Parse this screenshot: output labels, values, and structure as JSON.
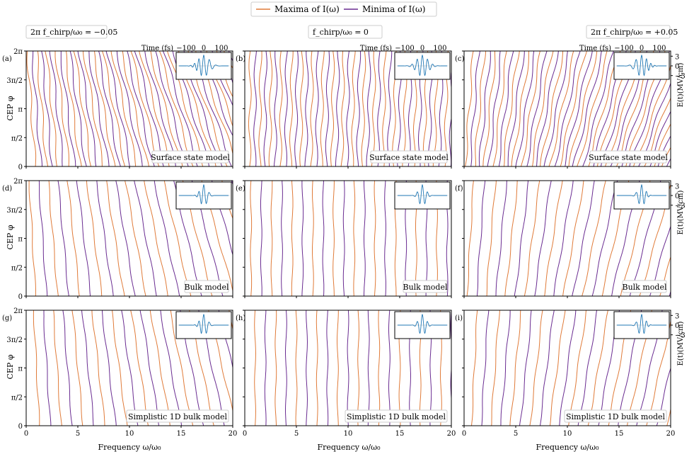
{
  "legend": {
    "maxima_label": "Maxima of I(ω)",
    "minima_label": "Minima of I(ω)",
    "maxima_color": "#e07b39",
    "minima_color": "#6a2c91"
  },
  "colors": {
    "inset_field": "#1f77b4"
  },
  "column_titles": [
    "2π f_chirp/ω₀ = −0.05",
    "f_chirp/ω₀ = 0",
    "2π f_chirp/ω₀ = +0.05"
  ],
  "row_models": [
    "Surface state model",
    "Bulk model",
    "Simplistic 1D bulk model"
  ],
  "panel_letters": [
    "(a)",
    "(b)",
    "(c)",
    "(d)",
    "(e)",
    "(f)",
    "(g)",
    "(h)",
    "(i)"
  ],
  "axes": {
    "xlabel": "Frequency ω/ω₀",
    "ylabel": "CEP φ",
    "right_label": "E(t)(MV/cm)",
    "xticks": [
      "0",
      "5",
      "10",
      "15",
      "20"
    ],
    "yticks": [
      "0",
      "π/2",
      "π",
      "3π/2",
      "2π"
    ],
    "inset_time_label": "Time (fs)",
    "inset_time_ticks": [
      "−100",
      "0",
      "100"
    ],
    "inset_field_ticks": [
      "3",
      "0",
      "−3"
    ]
  },
  "chart_data": {
    "type": "line",
    "description_units": "x: frequency in units of ω₀; y: CEP in radians",
    "xlim": [
      0,
      20
    ],
    "ylim": [
      0,
      6.2832
    ],
    "grid": false,
    "legend_placement": "top-center",
    "chirp_values": [
      -0.05,
      0,
      0.05
    ],
    "panels": [
      {
        "letter": "(a)",
        "model": "Surface state model",
        "chirp": -0.05,
        "x_start": 0.5,
        "spacing": 0.5,
        "slope": -0.28
      },
      {
        "letter": "(b)",
        "model": "Surface state model",
        "chirp": 0,
        "x_start": 0.5,
        "spacing": 0.5,
        "slope": 0.02
      },
      {
        "letter": "(c)",
        "model": "Surface state model",
        "chirp": 0.05,
        "x_start": 0.5,
        "spacing": 0.5,
        "slope": 0.28
      },
      {
        "letter": "(d)",
        "model": "Bulk model",
        "chirp": -0.05,
        "x_start": 0.6,
        "spacing": 1.0,
        "slope": -0.22
      },
      {
        "letter": "(e)",
        "model": "Bulk model",
        "chirp": 0,
        "x_start": 0.6,
        "spacing": 1.0,
        "slope": 0.0
      },
      {
        "letter": "(f)",
        "model": "Bulk model",
        "chirp": 0.05,
        "x_start": 0.6,
        "spacing": 1.0,
        "slope": 0.22
      },
      {
        "letter": "(g)",
        "model": "Simplistic 1D bulk model",
        "chirp": -0.05,
        "x_start": 1.0,
        "spacing": 1.0,
        "slope": -0.18
      },
      {
        "letter": "(h)",
        "model": "Simplistic 1D bulk model",
        "chirp": 0,
        "x_start": 1.0,
        "spacing": 1.0,
        "slope": 0.0
      },
      {
        "letter": "(i)",
        "model": "Simplistic 1D bulk model",
        "chirp": 0.05,
        "x_start": 1.0,
        "spacing": 1.0,
        "slope": 0.18
      }
    ]
  }
}
